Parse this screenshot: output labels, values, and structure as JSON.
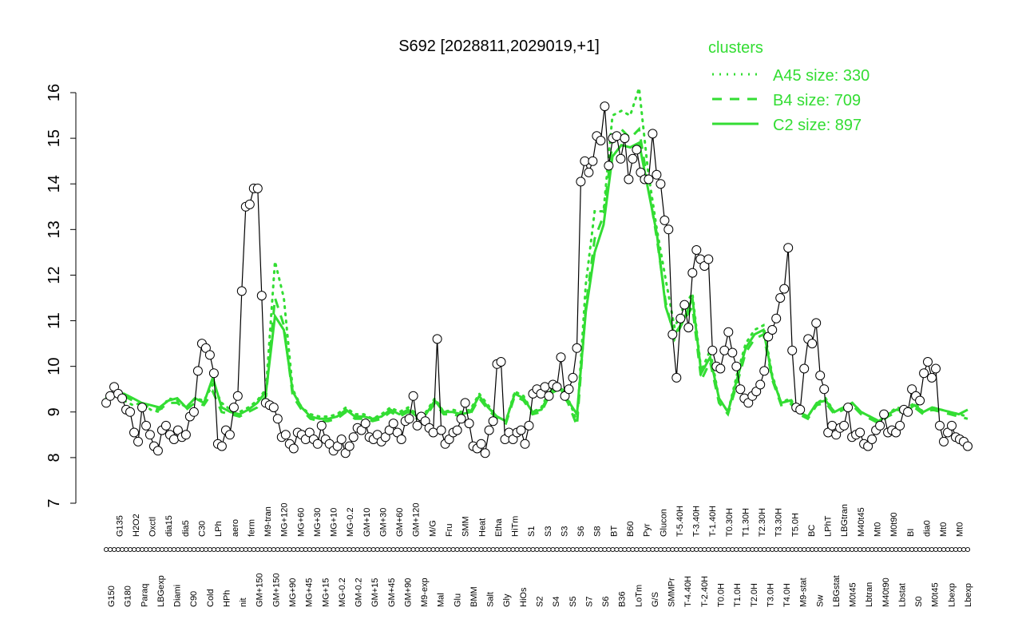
{
  "chart_data": {
    "type": "line",
    "title": "S692 [2028811,2029019,+1]",
    "xlabel": "",
    "ylabel": "",
    "ylim": [
      7,
      16
    ],
    "yticks": [
      7,
      8,
      9,
      10,
      11,
      12,
      13,
      14,
      15,
      16
    ],
    "grid": false,
    "legend": {
      "title": "clusters",
      "placement": "top-right",
      "entries": [
        {
          "label": "A45 size: 330",
          "style": "dotted"
        },
        {
          "label": "B4 size: 709",
          "style": "dashed"
        },
        {
          "label": "C2 size: 897",
          "style": "solid"
        }
      ]
    },
    "colors": {
      "clusters": "#33dd33",
      "series": "#000000",
      "points": "#ffffff"
    },
    "tick_labels": [
      "G150",
      "G135",
      "G180",
      "H2O2",
      "Paraq",
      "Oxctl",
      "LBGexp",
      "dia15",
      "Diami",
      "dia5",
      "C90",
      "C30",
      "Cold",
      "LPh",
      "HPh",
      "aero",
      "nit",
      "ferm",
      "GM+150",
      "M9-tran",
      "GM+150",
      "MG+120",
      "MG+90",
      "MG+60",
      "MG+45",
      "MG+30",
      "MG+15",
      "MG+10",
      "MG-0.2",
      "MG-0.2",
      "GM-0.2",
      "GM+10",
      "GM+15",
      "GM+30",
      "GM+45",
      "GM+60",
      "GM+90",
      "GM+120",
      "M9-exp",
      "M/G",
      "Mal",
      "Fru",
      "Glu",
      "SMM",
      "BMM",
      "Heat",
      "Salt",
      "Etha",
      "Gly",
      "HiTm",
      "HiOs",
      "S1",
      "S2",
      "S3",
      "S4",
      "S3",
      "S5",
      "S6",
      "S7",
      "S8",
      "S6",
      "BT",
      "B36",
      "B60",
      "LoTm",
      "Pyr",
      "G/S",
      "Glucon",
      "SMMPr",
      "T-5.40H",
      "T-4.40H",
      "T-3.40H",
      "T-2.40H",
      "T-1.40H",
      "T0.0H",
      "T0.30H",
      "T1.0H",
      "T1.30H",
      "T2.0H",
      "T2.30H",
      "T3.0H",
      "T3.30H",
      "T4.0H",
      "T5.0H",
      "M9-stat",
      "BC",
      "Sw",
      "LPhT",
      "LBGstat",
      "LBGtran",
      "M0t45",
      "M40t45",
      "Lbtran",
      "Mt0",
      "M40t90",
      "M0t90",
      "Lbstat",
      "BI",
      "S0",
      "dia0",
      "M0t45",
      "Mt0",
      "Lbexp",
      "Mt0",
      "Lbexp"
    ],
    "series": [
      {
        "values": [
          9.2,
          9.35,
          9.55,
          9.4,
          9.3,
          9.05,
          9.0,
          8.55,
          8.35,
          9.1,
          8.7,
          8.5,
          8.25,
          8.15,
          8.6,
          8.7,
          8.5,
          8.4,
          8.6,
          8.45,
          8.5,
          8.9,
          9.0,
          9.9,
          10.5,
          10.4,
          10.25,
          9.85,
          8.3,
          8.25,
          8.6,
          8.5,
          9.1,
          9.35,
          11.65,
          13.5,
          13.55,
          13.9,
          13.9,
          11.55,
          9.2,
          9.15,
          9.1,
          8.85,
          8.45,
          8.5,
          8.3,
          8.2,
          8.55,
          8.5,
          8.4,
          8.55,
          8.4,
          8.3,
          8.7,
          8.4,
          8.3,
          8.15,
          8.25,
          8.4,
          8.1,
          8.25,
          8.45,
          8.65,
          8.6,
          8.75,
          8.45,
          8.4,
          8.5,
          8.35,
          8.45,
          8.6,
          8.75,
          8.55,
          8.4,
          8.8,
          8.85,
          9.35,
          8.7,
          8.9,
          8.8,
          8.65,
          8.55,
          10.6,
          8.6,
          8.3,
          8.4,
          8.55,
          8.6,
          8.85,
          9.2,
          8.75,
          8.25,
          8.2,
          8.3,
          8.1,
          8.6,
          8.8,
          10.05,
          10.1,
          8.4,
          8.55,
          8.4,
          8.55,
          8.6,
          8.3,
          8.7,
          9.4,
          9.5,
          9.4,
          9.55,
          9.35,
          9.6,
          9.55,
          10.2,
          9.35,
          9.5,
          9.75,
          10.4,
          14.05,
          14.5,
          14.25,
          14.5,
          15.05,
          14.95,
          15.7,
          14.4,
          15.0,
          15.05,
          14.55,
          15.0,
          14.1,
          14.55,
          14.75,
          14.25,
          14.1,
          14.1,
          15.1,
          14.2,
          14.0,
          13.2,
          13.0,
          10.7,
          9.75,
          11.05,
          11.35,
          10.85,
          12.05,
          12.55,
          12.35,
          12.2,
          12.35,
          10.35,
          10.0,
          9.95,
          10.35,
          10.75,
          10.3,
          10.0,
          9.5,
          9.3,
          9.2,
          9.35,
          9.45,
          9.6,
          9.9,
          10.65,
          10.8,
          11.05,
          11.5,
          11.7,
          12.6,
          10.35,
          9.1,
          9.05,
          9.95,
          10.6,
          10.5,
          10.95,
          9.8,
          9.5,
          8.55,
          8.7,
          8.5,
          8.65,
          8.7,
          9.1,
          8.45,
          8.5,
          8.55,
          8.3,
          8.25,
          8.4,
          8.6,
          8.7,
          8.95,
          8.55,
          8.6,
          8.55,
          8.7,
          9.05,
          9.0,
          9.5,
          9.35,
          9.25,
          9.85,
          10.1,
          9.75,
          9.95,
          8.7,
          8.35,
          8.55,
          8.7,
          8.45,
          8.4,
          8.35,
          8.25
        ]
      }
    ],
    "clusters": [
      {
        "name": "A45 size: 330",
        "style": "dotted",
        "values": [
          9.3,
          9.4,
          9.25,
          9.15,
          9.2,
          9.05,
          9.0,
          9.3,
          9.25,
          9.1,
          9.3,
          9.25,
          9.6,
          9.2,
          9.05,
          9.0,
          9.1,
          9.25,
          9.5,
          12.3,
          11.5,
          9.5,
          9.1,
          8.95,
          8.9,
          8.9,
          8.95,
          9.1,
          8.95,
          8.95,
          8.85,
          8.95,
          9.1,
          9.0,
          9.1,
          8.95,
          9.0,
          9.3,
          9.0,
          9.05,
          9.0,
          9.05,
          9.4,
          9.15,
          8.9,
          8.8,
          9.45,
          9.35,
          9.0,
          9.1,
          9.5,
          9.6,
          9.3,
          8.8,
          11.8,
          13.4,
          13.4,
          15.5,
          15.6,
          15.5,
          16.1,
          14.3,
          13.0,
          11.9,
          10.85,
          11.3,
          11.6,
          9.9,
          10.35,
          9.3,
          9.0,
          9.8,
          10.5,
          10.8,
          10.9,
          9.8,
          9.2,
          9.3,
          9.0,
          8.9,
          9.2,
          9.3,
          9.0,
          9.1,
          9.2,
          9.0,
          8.9,
          8.8,
          8.95,
          9.1,
          9.05,
          9.2,
          9.0,
          9.1,
          9.05,
          9.0,
          8.95,
          8.9
        ]
      },
      {
        "name": "B4 size: 709",
        "style": "dashed",
        "values": [
          9.3,
          9.35,
          9.35,
          9.25,
          9.15,
          9.1,
          9.05,
          9.2,
          9.2,
          9.05,
          9.2,
          9.15,
          9.45,
          9.0,
          8.95,
          8.9,
          9.0,
          9.1,
          9.35,
          11.5,
          10.9,
          9.35,
          9.05,
          8.85,
          8.8,
          8.8,
          8.85,
          9.0,
          8.85,
          8.85,
          8.8,
          8.85,
          9.0,
          8.9,
          9.0,
          8.85,
          8.9,
          9.2,
          8.95,
          8.95,
          8.9,
          8.95,
          9.3,
          9.05,
          8.85,
          8.75,
          9.35,
          9.25,
          8.95,
          9.0,
          9.4,
          9.5,
          9.2,
          8.7,
          11.3,
          12.8,
          13.3,
          14.9,
          15.2,
          15.0,
          15.2,
          14.0,
          12.8,
          11.4,
          10.6,
          11.0,
          11.3,
          9.7,
          10.1,
          9.2,
          8.95,
          9.6,
          10.3,
          10.6,
          10.7,
          9.7,
          9.15,
          9.2,
          8.95,
          8.85,
          9.15,
          9.2,
          8.95,
          9.05,
          9.15,
          8.95,
          8.85,
          8.75,
          8.9,
          9.0,
          9.0,
          9.1,
          8.95,
          9.05,
          9.0,
          8.95,
          8.9,
          8.85
        ]
      },
      {
        "name": "C2 size: 897",
        "style": "solid",
        "values": [
          9.35,
          9.4,
          9.4,
          9.3,
          9.2,
          9.15,
          9.1,
          9.25,
          9.3,
          9.1,
          9.3,
          9.2,
          9.75,
          9.1,
          9.0,
          8.95,
          9.05,
          9.2,
          9.45,
          11.1,
          10.8,
          9.45,
          9.1,
          8.9,
          8.85,
          8.85,
          8.9,
          9.05,
          8.9,
          8.9,
          8.85,
          8.9,
          9.05,
          8.95,
          9.05,
          8.9,
          8.95,
          9.25,
          9.0,
          9.0,
          8.95,
          9.0,
          9.35,
          9.1,
          8.9,
          8.8,
          9.4,
          9.3,
          9.0,
          9.05,
          9.45,
          9.55,
          9.25,
          8.95,
          11.2,
          12.5,
          13.1,
          14.6,
          14.85,
          14.8,
          14.9,
          13.9,
          12.9,
          11.3,
          10.7,
          11.0,
          11.5,
          9.85,
          10.2,
          9.3,
          9.0,
          9.7,
          10.4,
          10.7,
          10.8,
          9.75,
          9.2,
          9.25,
          9.0,
          8.9,
          9.2,
          9.25,
          9.0,
          9.1,
          9.2,
          9.0,
          8.9,
          8.8,
          8.95,
          9.05,
          9.0,
          9.15,
          9.0,
          9.1,
          9.05,
          9.0,
          8.95,
          9.05
        ]
      }
    ]
  }
}
